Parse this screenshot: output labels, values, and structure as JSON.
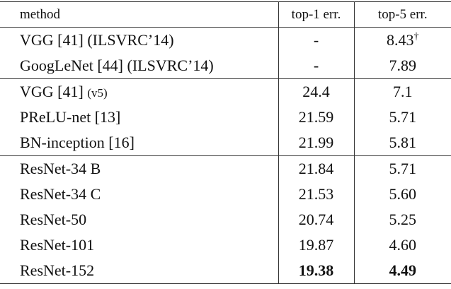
{
  "table": {
    "header": [
      "method",
      "top-1 err.",
      "top-5 err."
    ],
    "groups": [
      [
        [
          {
            "text": "VGG [41] (ILSVRC’14)"
          },
          {
            "text": "-"
          },
          {
            "text": "8.43",
            "mark": "†"
          }
        ],
        [
          {
            "text": "GoogLeNet [44] (ILSVRC’14)"
          },
          {
            "text": "-"
          },
          {
            "text": "7.89"
          }
        ]
      ],
      [
        [
          {
            "text": "VGG [41]",
            "note": "(v5)"
          },
          {
            "text": "24.4"
          },
          {
            "text": "7.1"
          }
        ],
        [
          {
            "text": "PReLU-net [13]"
          },
          {
            "text": "21.59"
          },
          {
            "text": "5.71"
          }
        ],
        [
          {
            "text": "BN-inception [16]"
          },
          {
            "text": "21.99"
          },
          {
            "text": "5.81"
          }
        ]
      ],
      [
        [
          {
            "text": "ResNet-34 B"
          },
          {
            "text": "21.84"
          },
          {
            "text": "5.71"
          }
        ],
        [
          {
            "text": "ResNet-34 C"
          },
          {
            "text": "21.53"
          },
          {
            "text": "5.60"
          }
        ],
        [
          {
            "text": "ResNet-50"
          },
          {
            "text": "20.74"
          },
          {
            "text": "5.25"
          }
        ],
        [
          {
            "text": "ResNet-101"
          },
          {
            "text": "19.87"
          },
          {
            "text": "4.60"
          }
        ],
        [
          {
            "text": "ResNet-152"
          },
          {
            "text": "19.38"
          },
          {
            "text": "4.49"
          }
        ]
      ]
    ]
  }
}
